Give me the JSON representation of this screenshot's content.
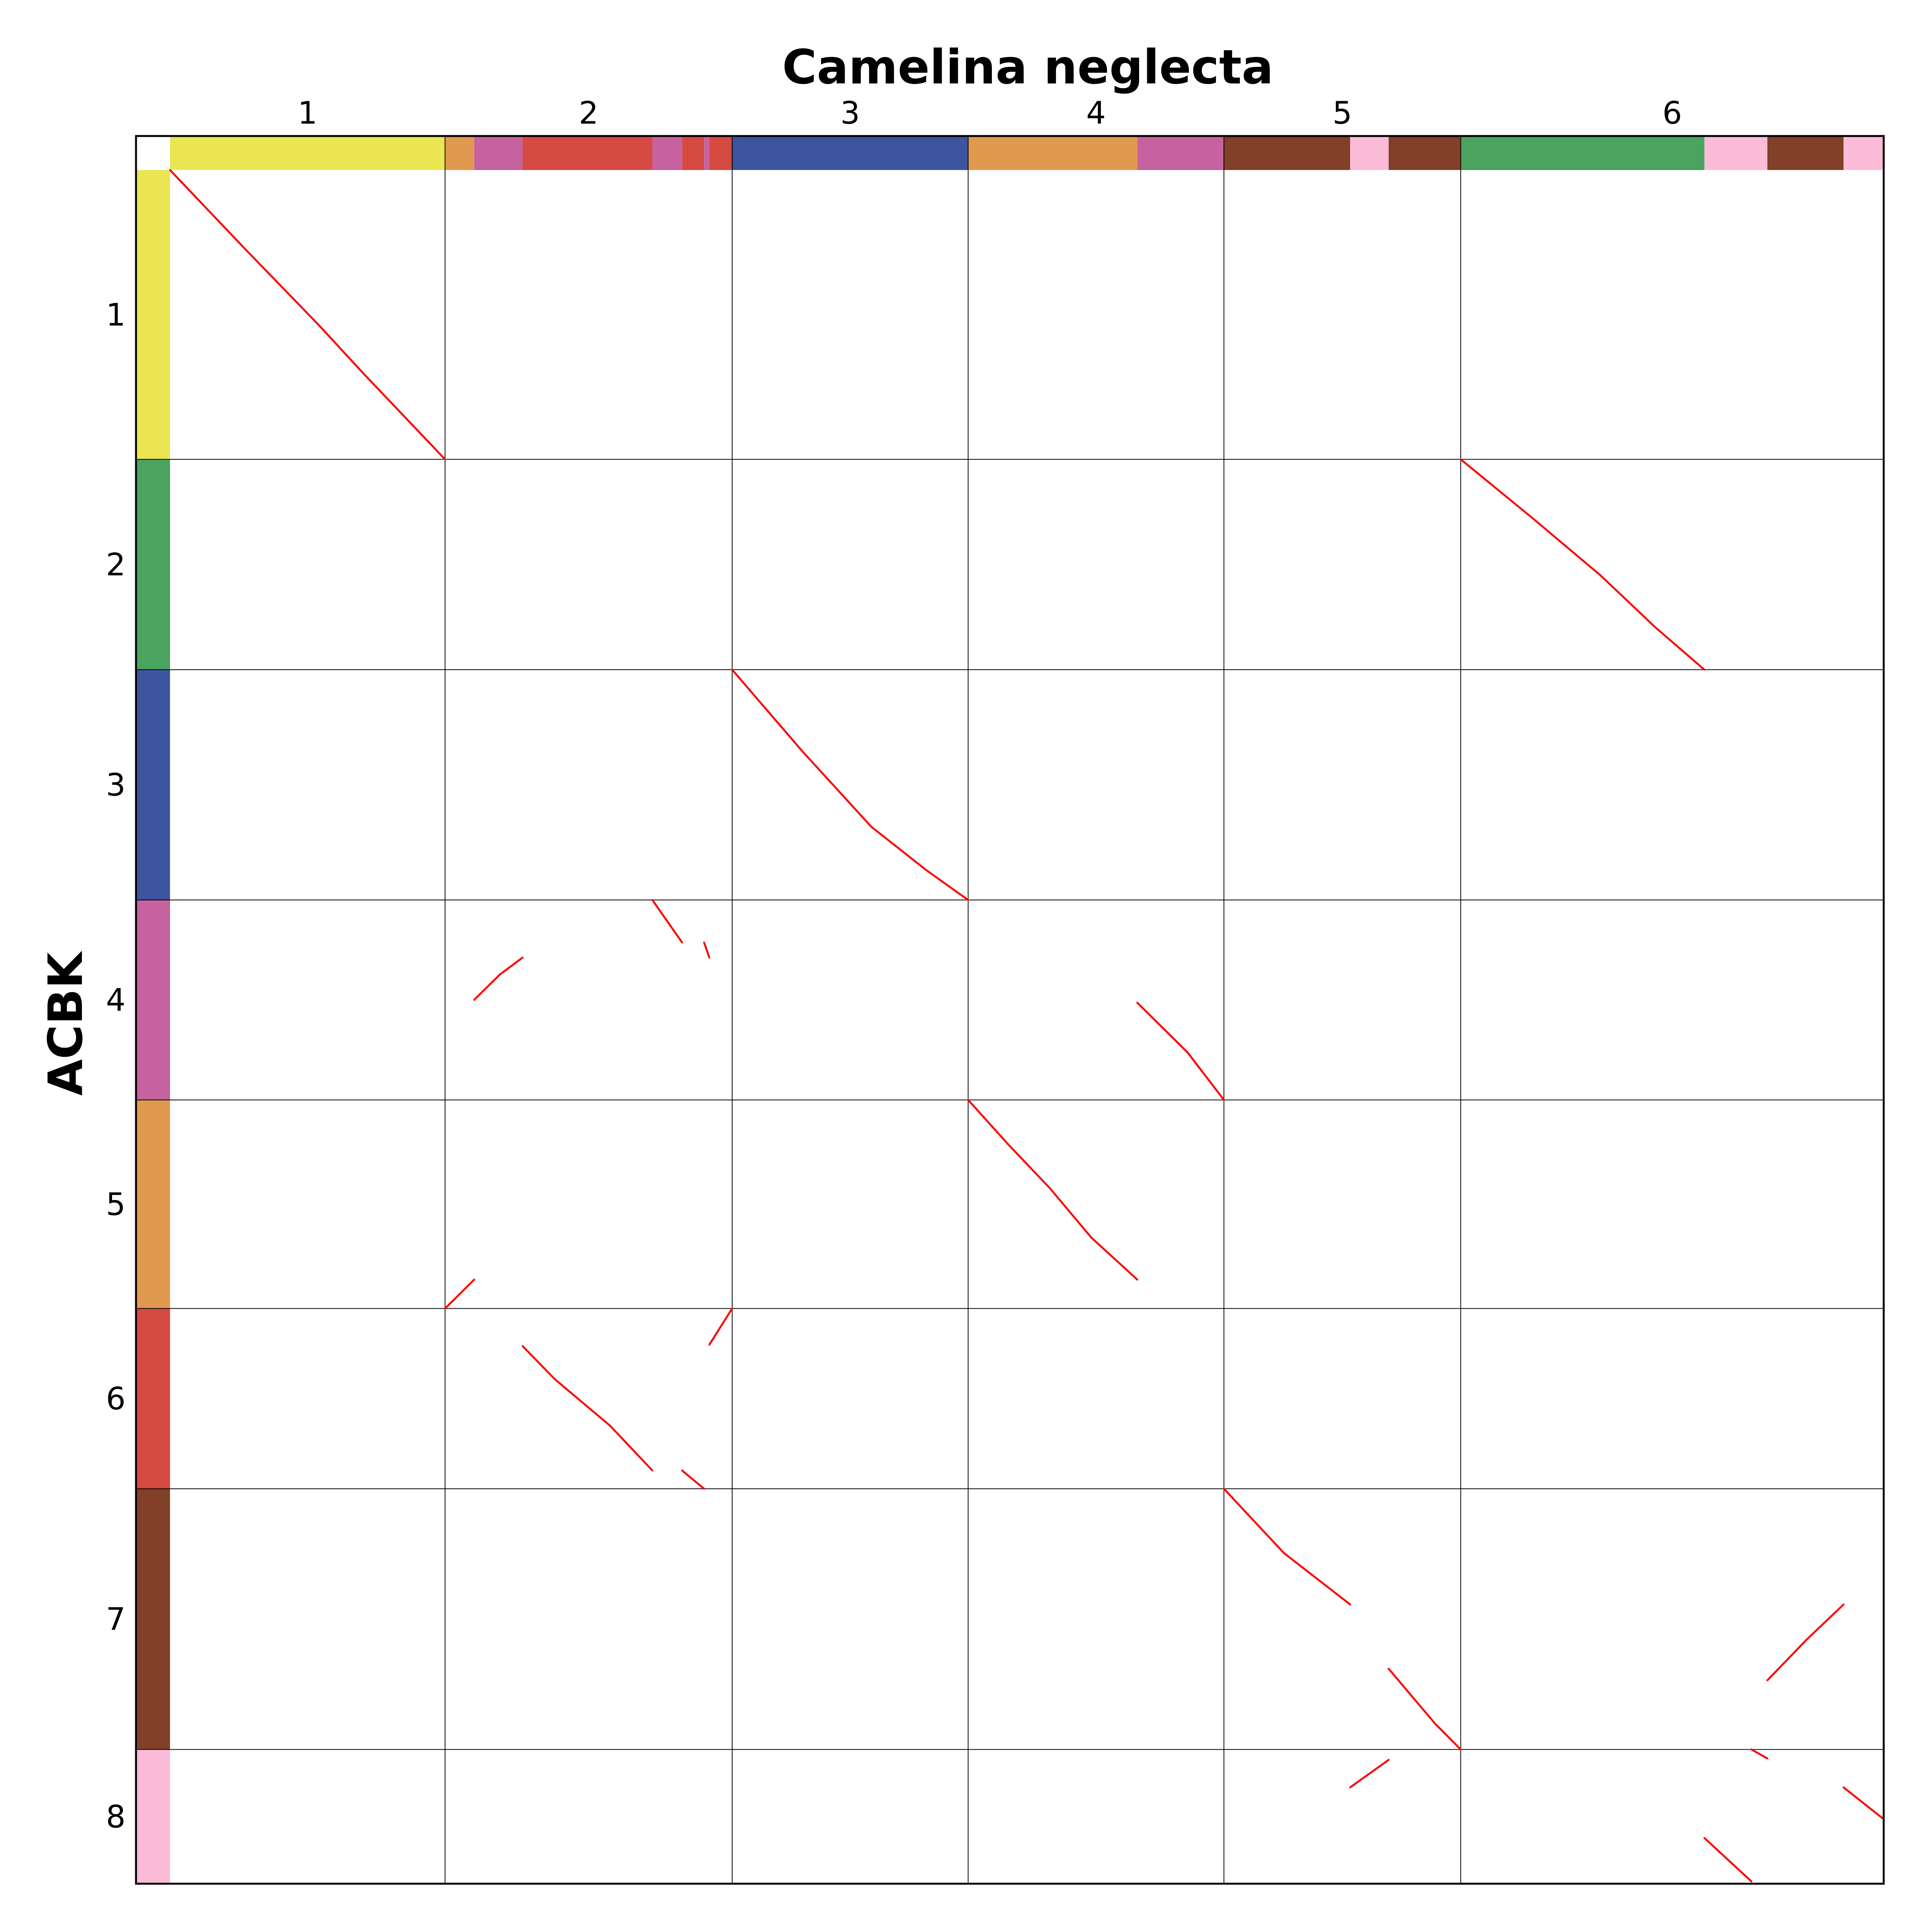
{
  "chart_data": {
    "type": "dotplot",
    "x_title": "Camelina neglecta",
    "y_title": "ACBK",
    "x_chromosomes": [
      {
        "label": "1",
        "start": 0,
        "end": 1.0
      },
      {
        "label": "2",
        "start": 1.0,
        "end": 2.044
      },
      {
        "label": "3",
        "start": 2.044,
        "end": 2.902
      },
      {
        "label": "4",
        "start": 2.902,
        "end": 3.832
      },
      {
        "label": "5",
        "start": 3.832,
        "end": 4.693
      },
      {
        "label": "6",
        "start": 4.693,
        "end": 6.231
      }
    ],
    "y_chromosomes": [
      {
        "label": "1",
        "start": 0,
        "end": 1.0
      },
      {
        "label": "2",
        "start": 1.0,
        "end": 1.727
      },
      {
        "label": "3",
        "start": 1.727,
        "end": 2.523
      },
      {
        "label": "4",
        "start": 2.523,
        "end": 3.214
      },
      {
        "label": "5",
        "start": 3.214,
        "end": 3.935
      },
      {
        "label": "6",
        "start": 3.935,
        "end": 4.558
      },
      {
        "label": "7",
        "start": 4.558,
        "end": 5.459
      },
      {
        "label": "8",
        "start": 5.459,
        "end": 5.923
      }
    ],
    "x_color_bands": [
      {
        "start": 0,
        "end": 1.0,
        "color": "#EBE552"
      },
      {
        "start": 1.0,
        "end": 1.106,
        "color": "#E0994F"
      },
      {
        "start": 1.106,
        "end": 1.282,
        "color": "#C6629F"
      },
      {
        "start": 1.282,
        "end": 1.754,
        "color": "#D54A41"
      },
      {
        "start": 1.754,
        "end": 1.862,
        "color": "#C6629F"
      },
      {
        "start": 1.862,
        "end": 1.942,
        "color": "#D54A41"
      },
      {
        "start": 1.942,
        "end": 1.961,
        "color": "#C6629F"
      },
      {
        "start": 1.961,
        "end": 2.044,
        "color": "#D54A41"
      },
      {
        "start": 2.044,
        "end": 2.902,
        "color": "#3D55A0"
      },
      {
        "start": 2.902,
        "end": 3.517,
        "color": "#E0994F"
      },
      {
        "start": 3.517,
        "end": 3.832,
        "color": "#C6629F"
      },
      {
        "start": 3.832,
        "end": 4.291,
        "color": "#814027"
      },
      {
        "start": 4.291,
        "end": 4.431,
        "color": "#FBBCD8"
      },
      {
        "start": 4.431,
        "end": 4.693,
        "color": "#814027"
      },
      {
        "start": 4.693,
        "end": 5.579,
        "color": "#4AA35E"
      },
      {
        "start": 5.579,
        "end": 5.808,
        "color": "#FBBCD8"
      },
      {
        "start": 5.808,
        "end": 6.085,
        "color": "#814027"
      },
      {
        "start": 6.085,
        "end": 6.231,
        "color": "#FBBCD8"
      }
    ],
    "y_color_bands": [
      {
        "start": 0,
        "end": 1.0,
        "color": "#EBE552"
      },
      {
        "start": 1.0,
        "end": 1.727,
        "color": "#4AA35E"
      },
      {
        "start": 1.727,
        "end": 2.523,
        "color": "#3D55A0"
      },
      {
        "start": 2.523,
        "end": 3.214,
        "color": "#C6629F"
      },
      {
        "start": 3.214,
        "end": 3.935,
        "color": "#E0994F"
      },
      {
        "start": 3.935,
        "end": 4.558,
        "color": "#D54A41"
      },
      {
        "start": 4.558,
        "end": 5.459,
        "color": "#814027"
      },
      {
        "start": 5.459,
        "end": 5.923,
        "color": "#FBBCD8"
      }
    ],
    "segments": [
      [
        [
          0.0,
          0.0
        ],
        [
          0.27,
          0.27
        ],
        [
          0.54,
          0.535
        ],
        [
          0.7,
          0.7
        ],
        [
          0.86,
          0.86
        ],
        [
          0.95,
          0.95
        ],
        [
          1.0,
          1.0
        ]
      ],
      [
        [
          4.693,
          1.0
        ],
        [
          4.95,
          1.2
        ],
        [
          5.2,
          1.4
        ],
        [
          5.4,
          1.58
        ],
        [
          5.579,
          1.727
        ]
      ],
      [
        [
          2.044,
          1.727
        ],
        [
          2.3,
          2.01
        ],
        [
          2.55,
          2.27
        ],
        [
          2.75,
          2.42
        ],
        [
          2.902,
          2.523
        ]
      ],
      [
        [
          1.106,
          2.868
        ],
        [
          1.2,
          2.78
        ],
        [
          1.282,
          2.722
        ]
      ],
      [
        [
          1.754,
          2.523
        ],
        [
          1.862,
          2.67
        ]
      ],
      [
        [
          1.942,
          2.67
        ],
        [
          1.961,
          2.722
        ]
      ],
      [
        [
          3.517,
          2.878
        ],
        [
          3.7,
          3.05
        ],
        [
          3.832,
          3.214
        ]
      ],
      [
        [
          2.902,
          3.214
        ],
        [
          3.05,
          3.37
        ],
        [
          3.2,
          3.52
        ],
        [
          3.35,
          3.69
        ],
        [
          3.517,
          3.835
        ]
      ],
      [
        [
          1.0,
          3.935
        ],
        [
          1.106,
          3.835
        ]
      ],
      [
        [
          1.282,
          4.065
        ],
        [
          1.4,
          4.18
        ],
        [
          1.6,
          4.34
        ],
        [
          1.754,
          4.495
        ]
      ],
      [
        [
          1.862,
          4.495
        ],
        [
          1.942,
          4.558
        ]
      ],
      [
        [
          1.961,
          4.06
        ],
        [
          2.044,
          3.935
        ]
      ],
      [
        [
          3.832,
          4.558
        ],
        [
          4.05,
          4.78
        ],
        [
          4.291,
          4.958
        ]
      ],
      [
        [
          4.431,
          5.18
        ],
        [
          4.6,
          5.37
        ],
        [
          4.693,
          5.459
        ]
      ],
      [
        [
          5.808,
          5.22
        ],
        [
          5.95,
          5.08
        ],
        [
          6.085,
          4.958
        ]
      ],
      [
        [
          4.291,
          5.59
        ],
        [
          4.431,
          5.495
        ]
      ],
      [
        [
          5.579,
          5.765
        ],
        [
          5.75,
          5.915
        ]
      ],
      [
        [
          6.085,
          5.59
        ],
        [
          6.231,
          5.7
        ]
      ],
      [
        [
          5.75,
          5.459
        ],
        [
          5.808,
          5.49
        ]
      ]
    ]
  }
}
